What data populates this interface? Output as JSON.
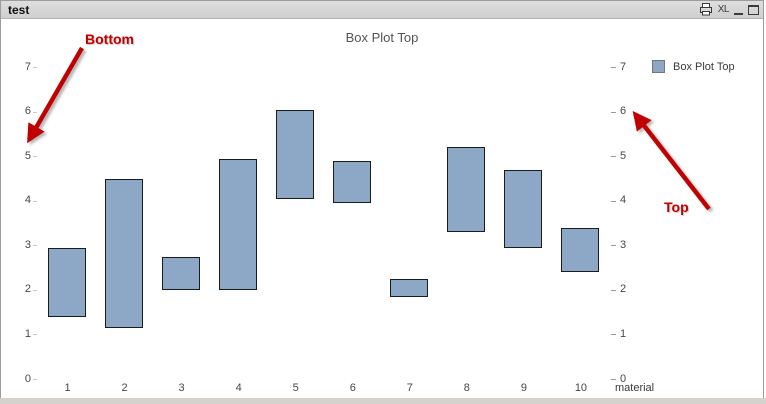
{
  "window": {
    "title": "test",
    "caption_icons": [
      {
        "name": "print-icon"
      },
      {
        "name": "export-excel-icon",
        "label": "XL"
      },
      {
        "name": "minimize-icon"
      },
      {
        "name": "maximize-icon"
      }
    ]
  },
  "chart_data": {
    "type": "bar",
    "subtype": "floating-range-bars",
    "title": "Box Plot Top",
    "xlabel": "material",
    "ylabel": "",
    "categories": [
      "1",
      "2",
      "3",
      "4",
      "5",
      "6",
      "7",
      "8",
      "9",
      "10"
    ],
    "series": [
      {
        "name": "Box Plot Top",
        "bottom": [
          1.35,
          1.1,
          1.95,
          1.95,
          4.0,
          3.9,
          1.8,
          3.25,
          2.9,
          2.35
        ],
        "top": [
          2.95,
          4.5,
          2.75,
          4.95,
          6.05,
          4.9,
          2.25,
          5.2,
          4.7,
          3.4
        ]
      }
    ],
    "ylim": [
      0,
      7
    ],
    "yticks": [
      0,
      1,
      2,
      3,
      4,
      5,
      6,
      7
    ],
    "y_axis_sides": [
      "left",
      "right"
    ],
    "grid": false,
    "legend": {
      "position": "top-right",
      "entries": [
        "Box Plot Top"
      ]
    },
    "colors": {
      "bar_fill": "#8DA7C6",
      "bar_border": "#1B1B1B",
      "annotation": "#C00000",
      "title_text": "#545454",
      "axis_text": "#464646"
    },
    "annotations": [
      {
        "text": "Bottom",
        "points_to": "left y-axis near value 5"
      },
      {
        "text": "Top",
        "points_to": "right y-axis near value 6"
      }
    ]
  }
}
